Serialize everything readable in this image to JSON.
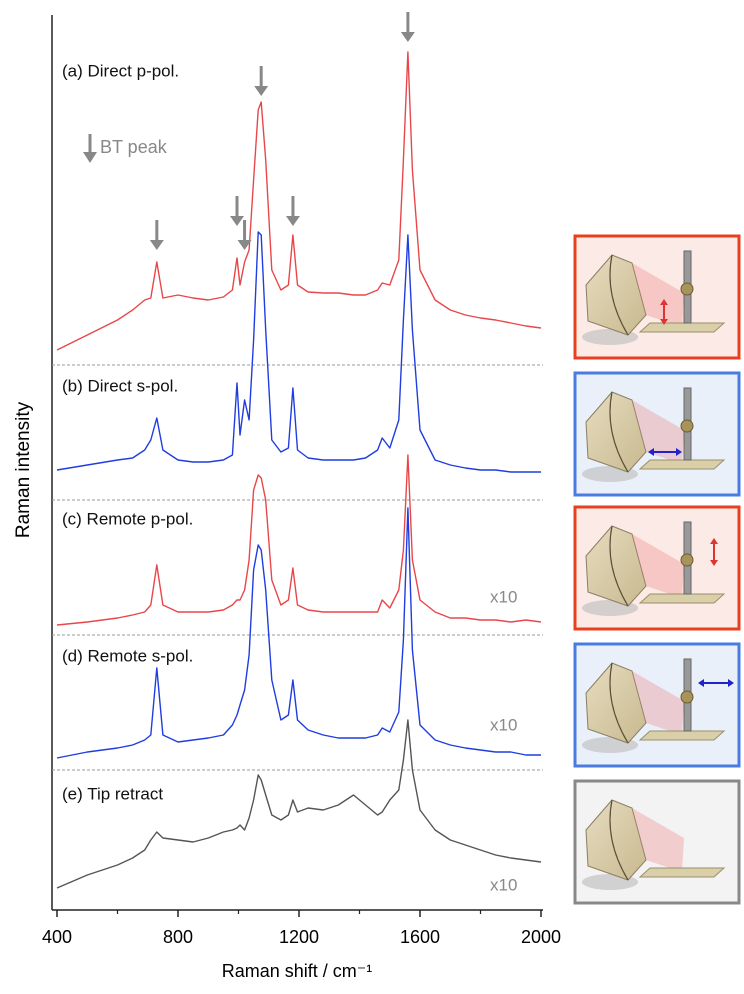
{
  "chart_data": {
    "type": "line",
    "x_label": "Raman shift / cm⁻¹",
    "y_label": "Raman intensity",
    "legend_label": "BT peak",
    "bt_peaks": [
      730,
      995,
      1020,
      1075,
      1180,
      1560
    ],
    "xlim": [
      400,
      2000
    ],
    "xticks": [
      400,
      800,
      1200,
      1600,
      2000
    ],
    "xminor_ticks": [
      600,
      1000,
      1400,
      1800
    ],
    "ylim": [
      0,
      885
    ],
    "x": [
      400,
      500,
      600,
      650,
      690,
      710,
      730,
      750,
      800,
      850,
      900,
      950,
      980,
      995,
      1005,
      1020,
      1035,
      1050,
      1065,
      1075,
      1090,
      1110,
      1140,
      1165,
      1180,
      1195,
      1230,
      1280,
      1330,
      1380,
      1420,
      1460,
      1475,
      1500,
      1530,
      1545,
      1560,
      1575,
      1600,
      1650,
      1700,
      1750,
      1800,
      1850,
      1900,
      1950,
      2000
    ],
    "series": [
      {
        "name": "(a) Direct p-pol.",
        "color": "#e8474a",
        "values": [
          555,
          570,
          585,
          595,
          605,
          607,
          643,
          607,
          610,
          607,
          605,
          608,
          615,
          647,
          620,
          643,
          655,
          725,
          795,
          803,
          745,
          635,
          615,
          620,
          670,
          620,
          613,
          612,
          612,
          610,
          610,
          615,
          622,
          620,
          645,
          745,
          853,
          735,
          635,
          605,
          595,
          590,
          587,
          585,
          582,
          579,
          577
        ]
      },
      {
        "name": "(b) Direct s-pol.",
        "color": "#1f3de0",
        "values": [
          435,
          440,
          445,
          447,
          455,
          465,
          487,
          455,
          445,
          443,
          443,
          445,
          450,
          522,
          470,
          505,
          485,
          565,
          673,
          670,
          575,
          465,
          453,
          457,
          517,
          455,
          447,
          445,
          445,
          445,
          447,
          455,
          467,
          457,
          485,
          585,
          670,
          575,
          475,
          445,
          440,
          437,
          435,
          435,
          433,
          433,
          433
        ]
      },
      {
        "name": "(c) Remote p-pol.",
        "color": "#e8474a",
        "scale_label": "x10",
        "values": [
          280,
          283,
          287,
          290,
          293,
          300,
          340,
          300,
          293,
          293,
          293,
          295,
          300,
          305,
          305,
          315,
          345,
          415,
          430,
          427,
          405,
          325,
          300,
          305,
          337,
          300,
          295,
          293,
          293,
          293,
          293,
          293,
          305,
          297,
          315,
          355,
          450,
          345,
          305,
          293,
          287,
          287,
          285,
          285,
          283,
          285,
          283
        ]
      },
      {
        "name": "(d) Remote s-pol.",
        "color": "#1f3de0",
        "scale_label": "x10",
        "values": [
          147,
          153,
          157,
          160,
          165,
          170,
          237,
          170,
          163,
          165,
          167,
          170,
          180,
          190,
          200,
          215,
          250,
          335,
          360,
          355,
          315,
          225,
          185,
          190,
          225,
          185,
          175,
          170,
          167,
          167,
          167,
          170,
          177,
          173,
          193,
          265,
          397,
          255,
          180,
          165,
          160,
          157,
          155,
          153,
          153,
          150,
          150
        ]
      },
      {
        "name": "(e) Tip retract",
        "color": "#555555",
        "scale_label": "x10",
        "values": [
          17,
          30,
          40,
          47,
          55,
          65,
          73,
          67,
          65,
          63,
          67,
          73,
          75,
          77,
          80,
          75,
          87,
          105,
          130,
          125,
          110,
          90,
          85,
          90,
          105,
          93,
          97,
          95,
          100,
          110,
          100,
          90,
          93,
          105,
          115,
          145,
          185,
          135,
          95,
          75,
          65,
          60,
          55,
          50,
          47,
          45,
          43
        ]
      }
    ]
  }
}
